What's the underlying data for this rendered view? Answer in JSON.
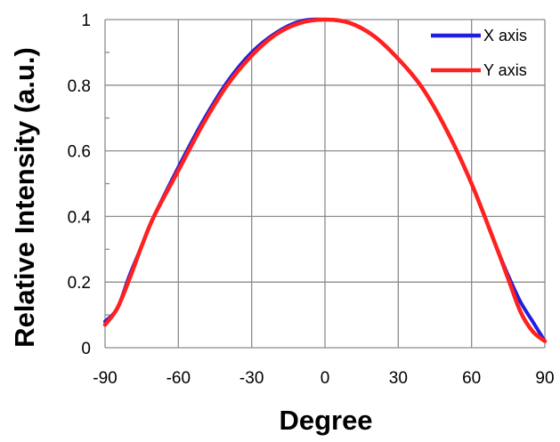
{
  "chart_data": {
    "type": "line",
    "title": "",
    "xlabel": "Degree",
    "ylabel": "Relative Intensity (a.u.)",
    "xlim": [
      -90,
      90
    ],
    "ylim": [
      0,
      1
    ],
    "x_ticks": [
      "-90",
      "-60",
      "-30",
      "0",
      "30",
      "60",
      "90"
    ],
    "y_ticks": [
      "0",
      "0.2",
      "0.4",
      "0.6",
      "0.8",
      "1"
    ],
    "grid": true,
    "legend_position": "top-right",
    "series": [
      {
        "name": "X axis",
        "color": "#1f1fe0",
        "x": [
          -90,
          -85,
          -80,
          -75,
          -70,
          -60,
          -50,
          -40,
          -30,
          -20,
          -10,
          0,
          10,
          20,
          30,
          40,
          50,
          60,
          70,
          75,
          80,
          85,
          90
        ],
        "y": [
          0.08,
          0.12,
          0.22,
          0.31,
          0.4,
          0.55,
          0.69,
          0.81,
          0.9,
          0.96,
          0.995,
          1.0,
          0.99,
          0.95,
          0.88,
          0.79,
          0.66,
          0.5,
          0.31,
          0.22,
          0.14,
          0.08,
          0.02
        ]
      },
      {
        "name": "Y axis",
        "color": "#ff2020",
        "x": [
          -90,
          -85,
          -80,
          -75,
          -70,
          -60,
          -50,
          -40,
          -30,
          -20,
          -10,
          0,
          10,
          20,
          30,
          40,
          50,
          60,
          70,
          75,
          80,
          85,
          90
        ],
        "y": [
          0.07,
          0.12,
          0.21,
          0.31,
          0.4,
          0.54,
          0.68,
          0.8,
          0.89,
          0.955,
          0.99,
          1.0,
          0.99,
          0.95,
          0.88,
          0.79,
          0.66,
          0.5,
          0.31,
          0.21,
          0.11,
          0.05,
          0.02
        ]
      }
    ]
  }
}
